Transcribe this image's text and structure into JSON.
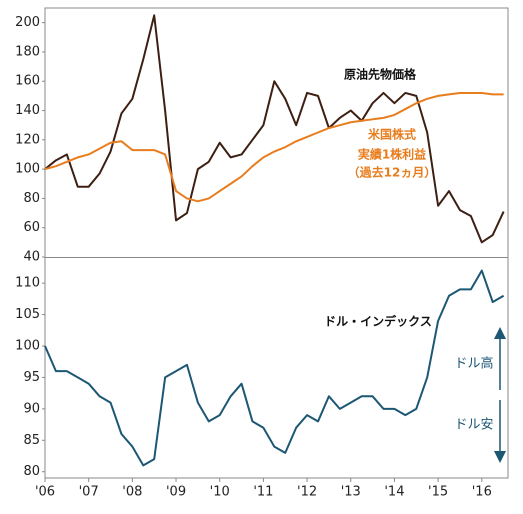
{
  "chart_data": [
    {
      "type": "line",
      "x": [
        2006,
        2006.25,
        2006.5,
        2006.75,
        2007,
        2007.25,
        2007.5,
        2007.75,
        2008,
        2008.25,
        2008.5,
        2008.75,
        2009,
        2009.25,
        2009.5,
        2009.75,
        2010,
        2010.25,
        2010.5,
        2010.75,
        2011,
        2011.25,
        2011.5,
        2011.75,
        2012,
        2012.25,
        2012.5,
        2012.75,
        2013,
        2013.25,
        2013.5,
        2013.75,
        2014,
        2014.25,
        2014.5,
        2014.75,
        2015,
        2015.25,
        2015.5,
        2015.75,
        2016,
        2016.25,
        2016.5
      ],
      "xlim": [
        2006,
        2016.6
      ],
      "ylim": [
        40,
        210
      ],
      "yticks": [
        40,
        60,
        80,
        100,
        120,
        140,
        160,
        180,
        200
      ],
      "series": [
        {
          "name": "原油先物価格",
          "color": "#3d1f14",
          "values": [
            100,
            106,
            110,
            88,
            88,
            97,
            112,
            138,
            148,
            175,
            205,
            140,
            65,
            70,
            100,
            105,
            118,
            108,
            110,
            120,
            130,
            160,
            148,
            130,
            152,
            150,
            128,
            135,
            140,
            133,
            145,
            152,
            145,
            152,
            150,
            125,
            75,
            85,
            72,
            68,
            50,
            55,
            71
          ]
        },
        {
          "name_lines": [
            "米国株式",
            "実績1株利益",
            "（過去12ヵ月）"
          ],
          "color": "#e87d1e",
          "values": [
            100,
            102,
            105,
            108,
            110,
            114,
            118,
            119,
            113,
            113,
            113,
            110,
            85,
            80,
            78,
            80,
            85,
            90,
            95,
            102,
            108,
            112,
            115,
            119,
            122,
            125,
            128,
            130,
            132,
            133,
            134,
            135,
            137,
            141,
            145,
            148,
            150,
            151,
            152,
            152,
            152,
            151,
            151
          ]
        }
      ]
    },
    {
      "type": "line",
      "x": [
        2006,
        2006.25,
        2006.5,
        2006.75,
        2007,
        2007.25,
        2007.5,
        2007.75,
        2008,
        2008.25,
        2008.5,
        2008.75,
        2009,
        2009.25,
        2009.5,
        2009.75,
        2010,
        2010.25,
        2010.5,
        2010.75,
        2011,
        2011.25,
        2011.5,
        2011.75,
        2012,
        2012.25,
        2012.5,
        2012.75,
        2013,
        2013.25,
        2013.5,
        2013.75,
        2014,
        2014.25,
        2014.5,
        2014.75,
        2015,
        2015.25,
        2015.5,
        2015.75,
        2016,
        2016.25,
        2016.5
      ],
      "xlim": [
        2006,
        2016.6
      ],
      "xticks": [
        {
          "value": 2006,
          "label": "'06"
        },
        {
          "value": 2007,
          "label": "'07"
        },
        {
          "value": 2008,
          "label": "'08"
        },
        {
          "value": 2009,
          "label": "'09"
        },
        {
          "value": 2010,
          "label": "'10"
        },
        {
          "value": 2011,
          "label": "'11"
        },
        {
          "value": 2012,
          "label": "'12"
        },
        {
          "value": 2013,
          "label": "'13"
        },
        {
          "value": 2014,
          "label": "'14"
        },
        {
          "value": 2015,
          "label": "'15"
        },
        {
          "value": 2016,
          "label": "'16"
        }
      ],
      "ylim": [
        79,
        114
      ],
      "yticks": [
        80,
        85,
        90,
        95,
        100,
        105,
        110
      ],
      "series": [
        {
          "name": "ドル・インデックス",
          "color": "#1c5774",
          "values": [
            100,
            96,
            96,
            95,
            94,
            92,
            91,
            86,
            84,
            81,
            82,
            95,
            96,
            97,
            91,
            88,
            89,
            92,
            94,
            88,
            87,
            84,
            83,
            87,
            89,
            88,
            92,
            90,
            91,
            92,
            92,
            90,
            90,
            89,
            90,
            95,
            104,
            108,
            109,
            109,
            112,
            107,
            108
          ]
        }
      ],
      "annotations": [
        "ドル高",
        "ドル安"
      ]
    }
  ]
}
